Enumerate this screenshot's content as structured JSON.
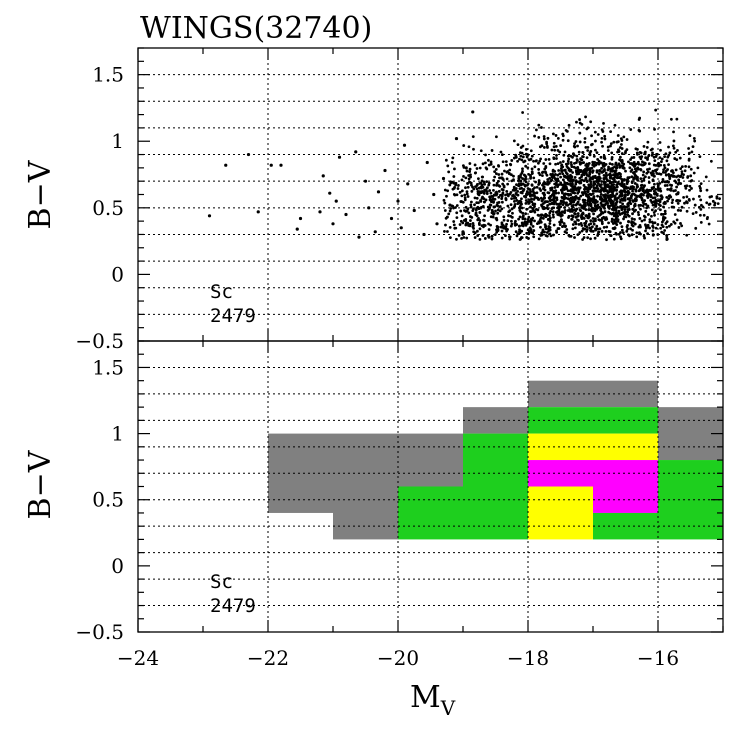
{
  "chart_data": [
    {
      "type": "scatter",
      "title": "WINGS(32740)",
      "ylabel": "B−V",
      "xlabel": "",
      "xlim": [
        -24,
        -15
      ],
      "ylim": [
        -0.5,
        1.7
      ],
      "xticks": [
        -24,
        -22,
        -20,
        -18,
        -16
      ],
      "yticks": [
        -0.5,
        0,
        0.5,
        1,
        1.5
      ],
      "ytick_labels": [
        "−0.5",
        "0",
        "0.5",
        "1",
        "1.5"
      ],
      "grid": true,
      "annotation": [
        "Sc",
        "2479"
      ],
      "n_points": 2479,
      "marker_color": "#000000",
      "points": [
        [
          -22.9,
          0.44
        ],
        [
          -22.65,
          0.82
        ],
        [
          -22.3,
          0.9
        ],
        [
          -22.15,
          0.47
        ],
        [
          -21.95,
          0.82
        ],
        [
          -21.8,
          0.82
        ],
        [
          -21.55,
          0.34
        ],
        [
          -21.5,
          0.42
        ],
        [
          -21.2,
          0.47
        ],
        [
          -21.15,
          0.74
        ],
        [
          -21.05,
          0.61
        ],
        [
          -21.0,
          0.38
        ],
        [
          -20.95,
          0.55
        ],
        [
          -20.9,
          0.88
        ],
        [
          -20.8,
          0.45
        ],
        [
          -20.65,
          0.92
        ],
        [
          -20.6,
          0.28
        ],
        [
          -20.5,
          0.7
        ],
        [
          -20.45,
          0.5
        ],
        [
          -20.35,
          0.32
        ],
        [
          -20.3,
          0.62
        ],
        [
          -20.2,
          0.78
        ],
        [
          -20.1,
          0.42
        ],
        [
          -20.0,
          0.55
        ],
        [
          -19.95,
          0.35
        ],
        [
          -19.9,
          0.97
        ],
        [
          -19.85,
          0.68
        ],
        [
          -19.75,
          0.48
        ],
        [
          -19.6,
          0.3
        ],
        [
          -19.55,
          0.84
        ],
        [
          -19.45,
          0.6
        ],
        [
          -19.4,
          0.38
        ],
        [
          -19.3,
          0.72
        ],
        [
          -19.2,
          0.52
        ],
        [
          -19.1,
          1.02
        ],
        [
          -19.0,
          0.32
        ],
        [
          -18.95,
          0.8
        ],
        [
          -18.85,
          1.22
        ],
        [
          -18.8,
          0.45
        ],
        [
          -18.7,
          0.62
        ],
        [
          -18.6,
          0.28
        ]
      ]
    },
    {
      "type": "heatmap",
      "title": "",
      "xlabel": "M",
      "xlabel_sub": "V",
      "ylabel": "B−V",
      "xlim": [
        -24,
        -15
      ],
      "ylim": [
        -0.5,
        1.7
      ],
      "xticks": [
        -24,
        -22,
        -20,
        -18,
        -16
      ],
      "xtick_labels": [
        "−24",
        "−22",
        "−20",
        "−18",
        "−16"
      ],
      "yticks": [
        -0.5,
        0,
        0.5,
        1,
        1.5
      ],
      "ytick_labels": [
        "−0.5",
        "0",
        "0.5",
        "1",
        "1.5"
      ],
      "grid": true,
      "annotation": [
        "Sc",
        "2479"
      ],
      "colors": {
        "gray": "#808080",
        "green": "#1ecf1e",
        "yellow": "#ffff00",
        "magenta": "#ff00ff"
      },
      "cells": [
        {
          "x": [
            -22,
            -21
          ],
          "y": [
            0.4,
            1.0
          ],
          "color": "gray"
        },
        {
          "x": [
            -21,
            -20
          ],
          "y": [
            0.2,
            1.0
          ],
          "color": "gray"
        },
        {
          "x": [
            -20,
            -19
          ],
          "y": [
            0.6,
            1.0
          ],
          "color": "gray"
        },
        {
          "x": [
            -20,
            -19
          ],
          "y": [
            0.2,
            0.6
          ],
          "color": "green"
        },
        {
          "x": [
            -19,
            -18
          ],
          "y": [
            1.0,
            1.2
          ],
          "color": "gray"
        },
        {
          "x": [
            -19,
            -18
          ],
          "y": [
            0.2,
            1.0
          ],
          "color": "green"
        },
        {
          "x": [
            -18,
            -16
          ],
          "y": [
            1.2,
            1.4
          ],
          "color": "gray"
        },
        {
          "x": [
            -18,
            -16
          ],
          "y": [
            1.0,
            1.2
          ],
          "color": "green"
        },
        {
          "x": [
            -18,
            -16
          ],
          "y": [
            0.8,
            1.0
          ],
          "color": "yellow"
        },
        {
          "x": [
            -18,
            -16
          ],
          "y": [
            0.6,
            0.8
          ],
          "color": "magenta"
        },
        {
          "x": [
            -18,
            -17
          ],
          "y": [
            0.2,
            0.6
          ],
          "color": "yellow"
        },
        {
          "x": [
            -17,
            -16
          ],
          "y": [
            0.4,
            0.6
          ],
          "color": "magenta"
        },
        {
          "x": [
            -17,
            -16
          ],
          "y": [
            0.2,
            0.4
          ],
          "color": "green"
        },
        {
          "x": [
            -16,
            -15
          ],
          "y": [
            0.8,
            1.2
          ],
          "color": "gray"
        },
        {
          "x": [
            -16,
            -15
          ],
          "y": [
            0.2,
            0.8
          ],
          "color": "green"
        }
      ]
    }
  ]
}
